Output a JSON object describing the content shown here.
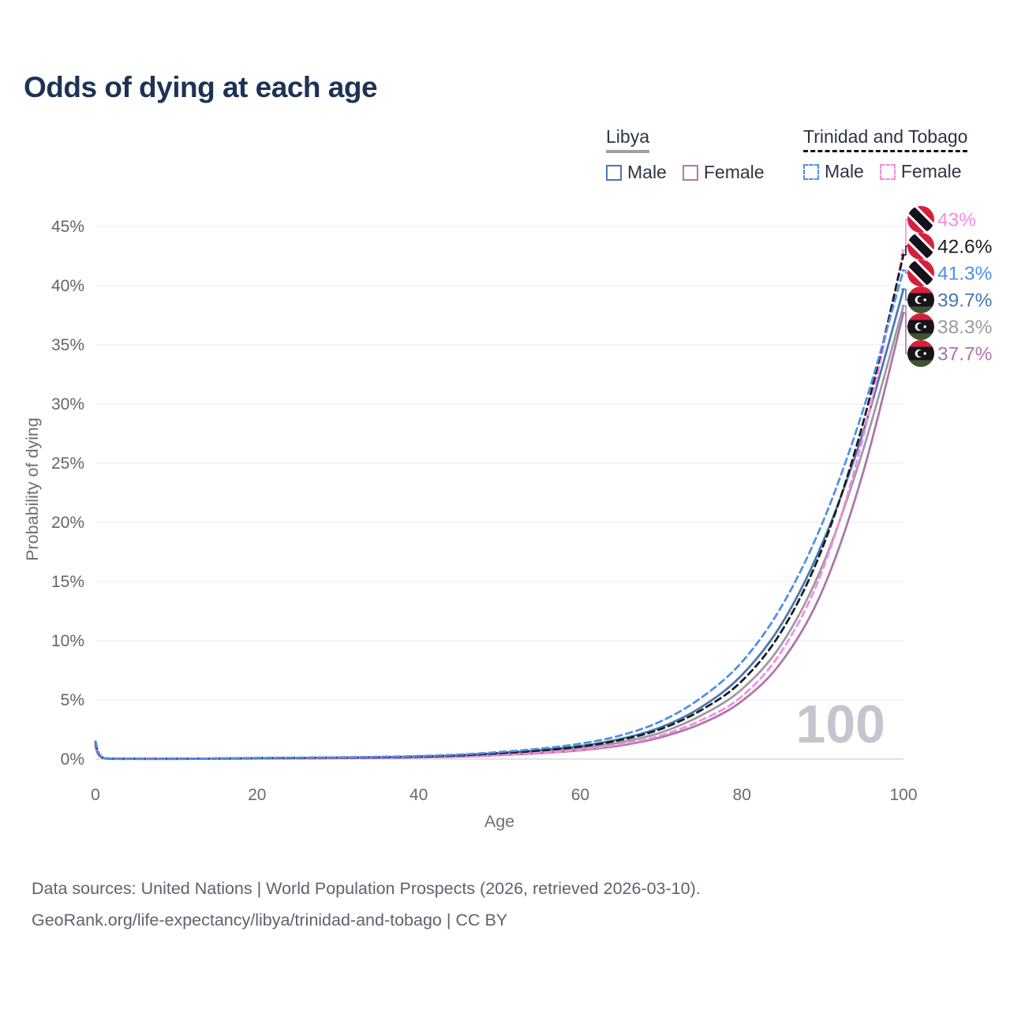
{
  "title": "Odds of dying at each age",
  "legend": {
    "groups": [
      {
        "name": "Libya",
        "line_style": "solid",
        "underline_color": "#9e9ea4",
        "items": [
          {
            "label": "Male",
            "color": "#4a76b4"
          },
          {
            "label": "Female",
            "color": "#b279ad"
          }
        ]
      },
      {
        "name": "Trinidad and Tobago",
        "line_style": "dashed",
        "underline_color": "#141414",
        "items": [
          {
            "label": "Male",
            "color": "#4e90e8"
          },
          {
            "label": "Female",
            "color": "#f98ae0"
          }
        ]
      }
    ]
  },
  "watermark": "100",
  "source": {
    "line1": "Data sources: United Nations | World Population Prospects (2026, retrieved 2026-03-10).",
    "line2": "GeoRank.org/life-expectancy/libya/trinidad-and-tobago | CC BY"
  },
  "chart_data": {
    "type": "line",
    "title": "Odds of dying at each age",
    "xlabel": "Age",
    "ylabel": "Probability of dying",
    "x_ticks": [
      0,
      20,
      40,
      60,
      80,
      100
    ],
    "y_ticks_percent": [
      0,
      5,
      10,
      15,
      20,
      25,
      30,
      35,
      40,
      45
    ],
    "xlim": [
      0,
      100
    ],
    "ylim_percent": [
      0,
      45
    ],
    "grid": true,
    "ages": [
      0,
      1,
      5,
      10,
      15,
      20,
      25,
      30,
      35,
      40,
      45,
      50,
      55,
      60,
      65,
      70,
      75,
      80,
      85,
      90,
      95,
      100
    ],
    "series": [
      {
        "name": "Libya Both sexes",
        "country": "Libya",
        "sex": "Both",
        "line_style": "solid",
        "color": "#9b9ba1",
        "flag": "libya-flag",
        "end_label": "38.3%",
        "label_slot_y": 414,
        "values_percent": [
          1.1,
          0.07,
          0.02,
          0.02,
          0.04,
          0.06,
          0.08,
          0.1,
          0.13,
          0.18,
          0.27,
          0.43,
          0.63,
          0.92,
          1.42,
          2.25,
          3.7,
          5.9,
          9.8,
          16.4,
          26.1,
          38.3
        ]
      },
      {
        "name": "Libya Female",
        "country": "Libya",
        "sex": "Female",
        "line_style": "solid",
        "color": "#ad74ae",
        "flag": "libya-flag",
        "end_label": "37.7%",
        "label_slot_y": 448,
        "values_percent": [
          1.0,
          0.06,
          0.02,
          0.02,
          0.03,
          0.05,
          0.06,
          0.08,
          0.1,
          0.14,
          0.21,
          0.34,
          0.5,
          0.74,
          1.15,
          1.85,
          3.0,
          4.9,
          8.3,
          14.3,
          24.2,
          37.7
        ]
      },
      {
        "name": "Libya Male",
        "country": "Libya",
        "sex": "Male",
        "line_style": "solid",
        "color": "#4a76b4",
        "flag": "libya-flag",
        "end_label": "39.7%",
        "label_slot_y": 380,
        "values_percent": [
          1.2,
          0.08,
          0.03,
          0.03,
          0.05,
          0.08,
          0.1,
          0.13,
          0.16,
          0.22,
          0.33,
          0.52,
          0.76,
          1.1,
          1.7,
          2.7,
          4.4,
          7.1,
          11.5,
          18.3,
          27.6,
          39.7
        ]
      },
      {
        "name": "Trinidad and Tobago Female",
        "country": "Trinidad and Tobago",
        "sex": "Female",
        "line_style": "dashed",
        "color": "#f98ae0",
        "flag": "trinidad-and-tobago-flag",
        "end_label": "43%",
        "label_slot_y": 278,
        "values_percent": [
          1.3,
          0.08,
          0.02,
          0.02,
          0.04,
          0.06,
          0.08,
          0.09,
          0.11,
          0.16,
          0.24,
          0.37,
          0.55,
          0.8,
          1.25,
          2.0,
          3.3,
          5.3,
          9.2,
          16.0,
          27.2,
          43.0
        ]
      },
      {
        "name": "Trinidad and Tobago Both sexes",
        "country": "Trinidad and Tobago",
        "sex": "Both",
        "line_style": "dashed",
        "color": "#1c1c1c",
        "flag": "trinidad-and-tobago-flag",
        "end_label": "42.6%",
        "label_slot_y": 312,
        "values_percent": [
          1.4,
          0.09,
          0.03,
          0.03,
          0.05,
          0.08,
          0.1,
          0.12,
          0.15,
          0.21,
          0.31,
          0.49,
          0.72,
          1.05,
          1.62,
          2.55,
          4.15,
          6.6,
          10.9,
          17.9,
          28.4,
          42.6
        ]
      },
      {
        "name": "Trinidad and Tobago Male",
        "country": "Trinidad and Tobago",
        "sex": "Male",
        "line_style": "dashed",
        "color": "#4e90e8",
        "flag": "trinidad-and-tobago-flag",
        "end_label": "41.3%",
        "label_slot_y": 346,
        "values_percent": [
          1.5,
          0.1,
          0.03,
          0.03,
          0.06,
          0.1,
          0.12,
          0.15,
          0.19,
          0.26,
          0.38,
          0.6,
          0.88,
          1.3,
          2.0,
          3.2,
          5.2,
          8.2,
          13.0,
          20.0,
          29.5,
          41.3
        ]
      }
    ]
  }
}
